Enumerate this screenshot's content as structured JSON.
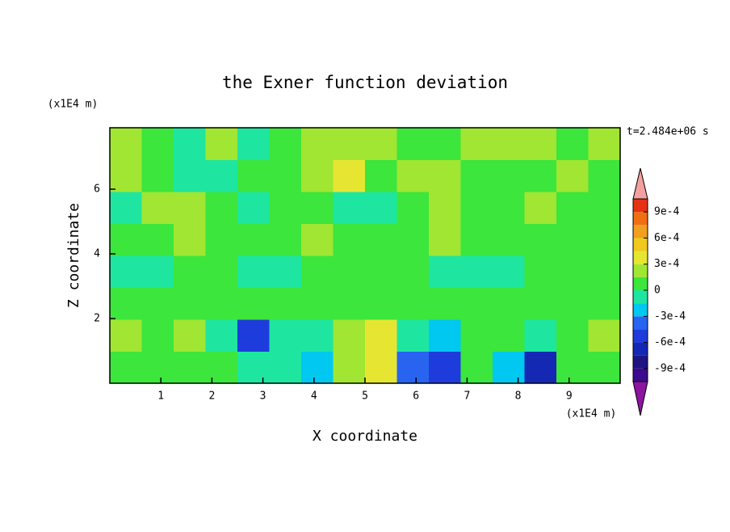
{
  "chart_data": {
    "type": "contour",
    "title": "the Exner function deviation",
    "xlabel": "X coordinate",
    "ylabel": "Z coordinate",
    "x_unit": "(x1E4 m)",
    "y_unit": "(x1E4 m)",
    "time_label": "t=2.484e+06 s",
    "xlim": [
      0,
      10
    ],
    "ylim": [
      0,
      7.9
    ],
    "xticks": [
      1,
      2,
      3,
      4,
      5,
      6,
      7,
      8,
      9
    ],
    "yticks": [
      2,
      4,
      6
    ],
    "clim": [
      -0.00105,
      0.00105
    ],
    "colors": [
      "#8c14a0",
      "#3c0a8c",
      "#1e1482",
      "#1428b4",
      "#1e3cdc",
      "#2864f0",
      "#00c8f0",
      "#1ee6a0",
      "#3ce63c",
      "#a0e632",
      "#e6e632",
      "#f0c81e",
      "#f0a01e",
      "#f06e14",
      "#e63214",
      "#f4a0a0"
    ],
    "cticks": [
      {
        "value": 0.0009,
        "label": "9e-4"
      },
      {
        "value": 0.0006,
        "label": "6e-4"
      },
      {
        "value": 0.0003,
        "label": "3e-4"
      },
      0,
      {
        "value": -0.0003,
        "label": "-3e-4"
      },
      {
        "value": -0.0006,
        "label": "-6e-4"
      },
      {
        "value": -0.0009,
        "label": "-9e-4"
      }
    ],
    "z": [
      [
        0.0001,
        5e-05,
        0.0001,
        0.0001,
        -0.0001,
        -0.00015,
        -0.0003,
        0.00015,
        0.0003,
        -0.0004,
        -0.0006,
        5e-05,
        -0.0003,
        -0.0007,
        5e-05,
        0.0001
      ],
      [
        0.00015,
        0.0001,
        0.00015,
        -0.0001,
        -0.0006,
        -0.0001,
        -0.0001,
        0.0002,
        0.0003,
        -0.0001,
        -0.0002,
        0.0001,
        0.0001,
        -0.0001,
        0.0001,
        0.00015
      ],
      [
        5e-05,
        5e-05,
        5e-05,
        5e-05,
        5e-05,
        0.0001,
        0.0001,
        0.0001,
        0.0001,
        0.0001,
        5e-05,
        5e-05,
        0.0001,
        5e-05,
        5e-05,
        5e-05
      ],
      [
        -5e-05,
        -5e-05,
        5e-05,
        5e-05,
        -5e-05,
        -5e-05,
        5e-05,
        5e-05,
        5e-05,
        5e-05,
        -5e-05,
        -5e-05,
        -5e-05,
        5e-05,
        5e-05,
        5e-05
      ],
      [
        5e-05,
        0.0001,
        0.00015,
        0.0001,
        5e-05,
        0.0001,
        0.00015,
        0.0001,
        5e-05,
        5e-05,
        0.00015,
        0.0001,
        5e-05,
        5e-05,
        0.0001,
        5e-05
      ],
      [
        -5e-05,
        0.0002,
        0.00015,
        5e-05,
        -5e-05,
        0.0001,
        5e-05,
        -5e-05,
        -5e-05,
        0.0001,
        0.00015,
        0.0001,
        0.0001,
        0.0002,
        0.0001,
        5e-05
      ],
      [
        0.00015,
        5e-05,
        -0.0001,
        -0.0001,
        5e-05,
        0.0001,
        0.0002,
        0.0003,
        5e-05,
        0.00015,
        0.0002,
        0.0001,
        5e-05,
        5e-05,
        0.00015,
        0.0001
      ],
      [
        0.0002,
        5e-05,
        -0.0001,
        0.00015,
        -0.0001,
        0.0001,
        0.0002,
        0.00015,
        0.00015,
        5e-05,
        0.0001,
        0.00015,
        0.0002,
        0.00025,
        0.0001,
        0.00015
      ]
    ]
  }
}
